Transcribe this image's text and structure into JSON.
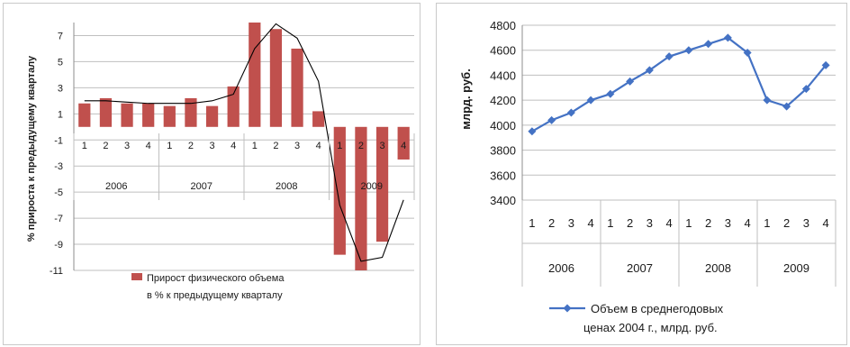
{
  "chart_data": [
    {
      "type": "bar",
      "ylabel": "% прироста к предыдущему кварталу",
      "ylim": [
        -11,
        8
      ],
      "yticks": [
        7,
        5,
        3,
        1,
        -1,
        -3,
        -5,
        -7,
        -9,
        -11
      ],
      "categories": [
        "1",
        "2",
        "3",
        "4",
        "1",
        "2",
        "3",
        "4",
        "1",
        "2",
        "3",
        "4",
        "1",
        "2",
        "3",
        "4"
      ],
      "years": [
        "2006",
        "2007",
        "2008",
        "2009"
      ],
      "series": [
        {
          "name": "Прирост физического объема в % к предыдущему кварталу",
          "values": [
            1.8,
            2.2,
            1.8,
            1.8,
            1.6,
            2.2,
            1.6,
            3.1,
            8.0,
            7.5,
            6.0,
            1.2,
            -9.8,
            -11.0,
            -8.8,
            -2.5
          ]
        }
      ],
      "trendline": [
        2.0,
        2.0,
        1.9,
        1.8,
        1.8,
        1.8,
        2.0,
        2.5,
        6.0,
        7.9,
        6.8,
        3.5,
        -6.0,
        -10.3,
        -10.0,
        -5.6
      ],
      "legend": [
        "Прирост физического объема",
        "в % к предыдущему кварталу"
      ],
      "colors": {
        "bar": "#c0504d",
        "trend": "#000000",
        "grid": "#bfbfbf"
      },
      "grid": true,
      "legend_position": "bottom"
    },
    {
      "type": "line",
      "ylabel": "млрд. руб.",
      "ylim": [
        3400,
        4800
      ],
      "yticks": [
        4800,
        4600,
        4400,
        4200,
        4000,
        3800,
        3600,
        3400
      ],
      "categories": [
        "1",
        "2",
        "3",
        "4",
        "1",
        "2",
        "3",
        "4",
        "1",
        "2",
        "3",
        "4",
        "1",
        "2",
        "3",
        "4"
      ],
      "years": [
        "2006",
        "2007",
        "2008",
        "2009"
      ],
      "series": [
        {
          "name": "Объем в среднегодовых ценах 2004 г., млрд. руб.",
          "values": [
            3950,
            4040,
            4100,
            4200,
            4250,
            4350,
            4440,
            4550,
            4600,
            4650,
            4700,
            4580,
            4200,
            4150,
            4290,
            4480
          ]
        }
      ],
      "legend": [
        "Объем в среднегодовых",
        "ценах 2004 г., млрд. руб."
      ],
      "colors": {
        "line": "#4472c4",
        "grid": "#bfbfbf"
      },
      "grid": true,
      "legend_position": "bottom"
    }
  ]
}
